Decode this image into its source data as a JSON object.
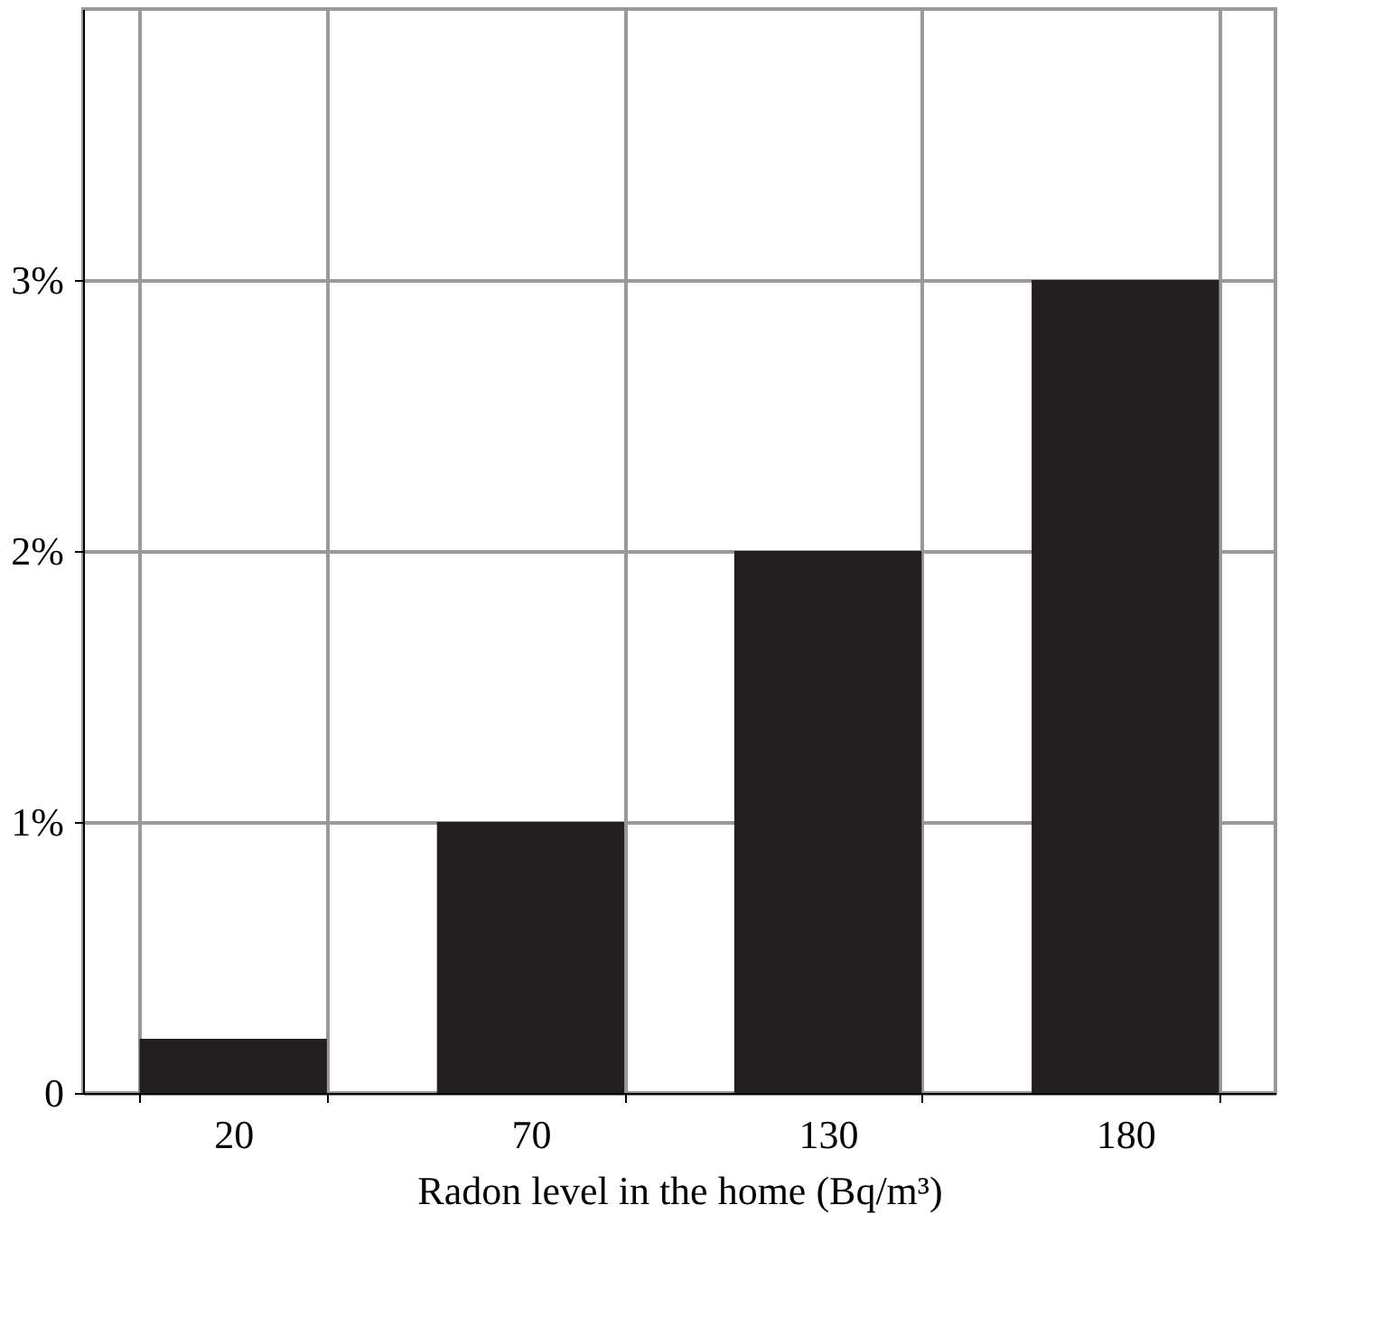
{
  "chart_data": {
    "type": "bar",
    "xlabel": "Radon level in the home (Bq/m³)",
    "categories": [
      "20",
      "70",
      "130",
      "180"
    ],
    "values": [
      0.2,
      1,
      2,
      3
    ],
    "color": "#231f20",
    "ylim": [
      0,
      4
    ],
    "yticks": [
      0,
      {
        "value": 1,
        "label": "1%"
      },
      {
        "value": 2,
        "label": "2%"
      },
      {
        "value": 3,
        "label": "3%"
      }
    ],
    "grid": true
  }
}
